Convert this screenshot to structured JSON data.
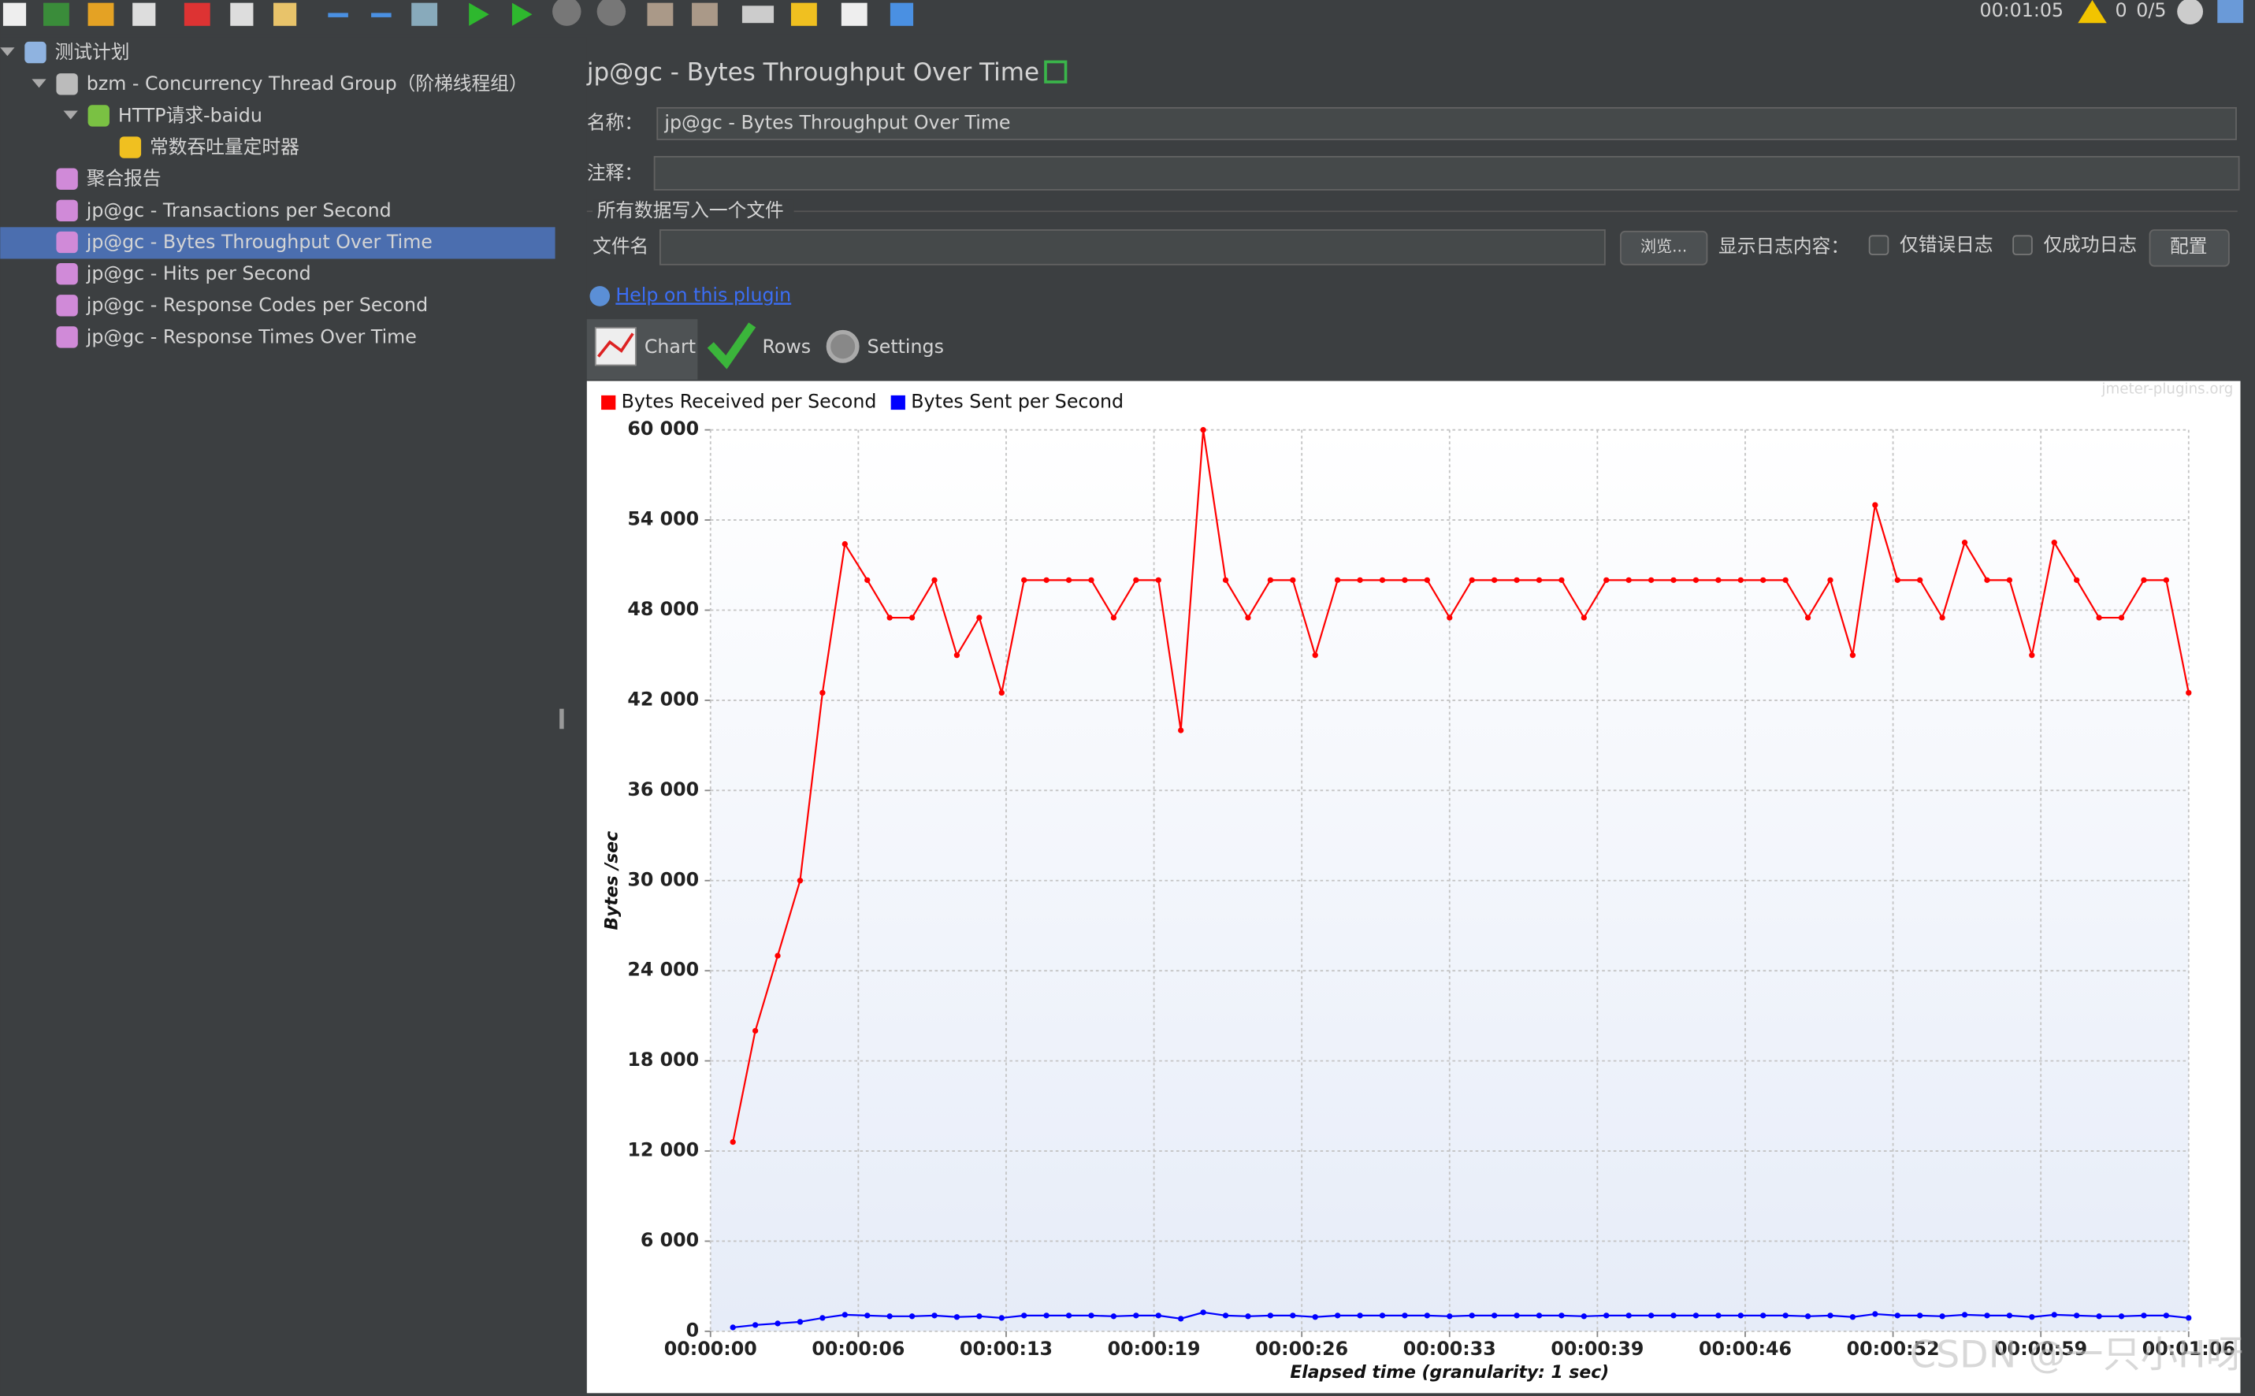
{
  "toolbar": {
    "elapsed": "00:01:05",
    "warnings": "0",
    "threads": "0/5"
  },
  "tree": [
    "测试计划",
    "bzm - Concurrency Thread Group（阶梯线程组）",
    "HTTP请求-baidu",
    "常数吞吐量定时器",
    "聚合报告",
    "jp@gc - Transactions per Second",
    "jp@gc - Bytes Throughput Over Time",
    "jp@gc - Hits per Second",
    "jp@gc - Response Codes per Second",
    "jp@gc - Response Times Over Time"
  ],
  "panel": {
    "title": "jp@gc - Bytes Throughput Over Time",
    "name_label": "名称：",
    "name_value": "jp@gc - Bytes Throughput Over Time",
    "comment_label": "注释：",
    "file_section": "所有数据写入一个文件",
    "file_label": "文件名",
    "browse": "浏览...",
    "log_label": "显示日志内容：",
    "errors_only": "仅错误日志",
    "success_only": "仅成功日志",
    "configure": "配置",
    "help": "Help on this plugin",
    "tabs": [
      "Chart",
      "Rows",
      "Settings"
    ]
  },
  "chart_data": {
    "type": "line",
    "y_label": "Bytes /sec",
    "x_label": "Elapsed time (granularity: 1 sec)",
    "watermark": "jmeter-plugins.org",
    "credit": "CSDN @一只小H呀",
    "legend": "top-left",
    "grid": true,
    "x": [
      1,
      2,
      3,
      4,
      5,
      6,
      7,
      8,
      9,
      10,
      11,
      12,
      13,
      14,
      15,
      16,
      17,
      18,
      19,
      20,
      21,
      22,
      23,
      24,
      25,
      26,
      27,
      28,
      29,
      30,
      31,
      32,
      33,
      34,
      35,
      36,
      37,
      38,
      39,
      40,
      41,
      42,
      43,
      44,
      45,
      46,
      47,
      48,
      49,
      50,
      51,
      52,
      53,
      54,
      55,
      56,
      57,
      58,
      59,
      60,
      61,
      62,
      63,
      64,
      65,
      66
    ],
    "series": [
      {
        "name": "Bytes Received per Second",
        "color": "#ff0000",
        "values": [
          12600,
          20000,
          25000,
          30000,
          42500,
          52400,
          50000,
          47500,
          47500,
          50000,
          45000,
          47500,
          42500,
          50000,
          50000,
          50000,
          50000,
          47500,
          50000,
          50000,
          40000,
          60000,
          50000,
          47500,
          50000,
          50000,
          45000,
          50000,
          50000,
          50000,
          50000,
          50000,
          47500,
          50000,
          50000,
          50000,
          50000,
          50000,
          47500,
          50000,
          50000,
          50000,
          50000,
          50000,
          50000,
          50000,
          50000,
          50000,
          47500,
          50000,
          45000,
          55000,
          50000,
          50000,
          47500,
          52500,
          50000,
          50000,
          45000,
          52500,
          50000,
          47500,
          47500,
          50000,
          50000,
          42500
        ]
      },
      {
        "name": "Bytes Sent per Second",
        "color": "#0000ff",
        "values": [
          260,
          420,
          520,
          630,
          890,
          1100,
          1050,
          1000,
          1000,
          1050,
          950,
          1000,
          890,
          1050,
          1050,
          1050,
          1050,
          1000,
          1050,
          1050,
          840,
          1260,
          1050,
          1000,
          1050,
          1050,
          950,
          1050,
          1050,
          1050,
          1050,
          1050,
          1000,
          1050,
          1050,
          1050,
          1050,
          1050,
          1000,
          1050,
          1050,
          1050,
          1050,
          1050,
          1050,
          1050,
          1050,
          1050,
          1000,
          1050,
          950,
          1150,
          1050,
          1050,
          1000,
          1100,
          1050,
          1050,
          950,
          1100,
          1050,
          1000,
          1000,
          1050,
          1050,
          890
        ]
      }
    ],
    "xlim": [
      0,
      66
    ],
    "xticks": [
      {
        "value": 0,
        "label": "00:00:00"
      },
      {
        "value": 6.6,
        "label": "00:00:06"
      },
      {
        "value": 13.2,
        "label": "00:00:13"
      },
      {
        "value": 19.8,
        "label": "00:00:19"
      },
      {
        "value": 26.4,
        "label": "00:00:26"
      },
      {
        "value": 33,
        "label": "00:00:33"
      },
      {
        "value": 39.6,
        "label": "00:00:39"
      },
      {
        "value": 46.2,
        "label": "00:00:46"
      },
      {
        "value": 52.8,
        "label": "00:00:52"
      },
      {
        "value": 59.4,
        "label": "00:00:59"
      },
      {
        "value": 66,
        "label": "00:01:06"
      }
    ],
    "ylim": [
      0,
      60000
    ],
    "yticks": [
      0,
      {
        "value": 6000,
        "label": "6 000"
      },
      {
        "value": 12000,
        "label": "12 000"
      },
      {
        "value": 18000,
        "label": "18 000"
      },
      {
        "value": 24000,
        "label": "24 000"
      },
      {
        "value": 30000,
        "label": "30 000"
      },
      {
        "value": 36000,
        "label": "36 000"
      },
      {
        "value": 42000,
        "label": "42 000"
      },
      {
        "value": 48000,
        "label": "48 000"
      },
      {
        "value": 54000,
        "label": "54 000"
      },
      {
        "value": 60000,
        "label": "60 000"
      }
    ]
  }
}
